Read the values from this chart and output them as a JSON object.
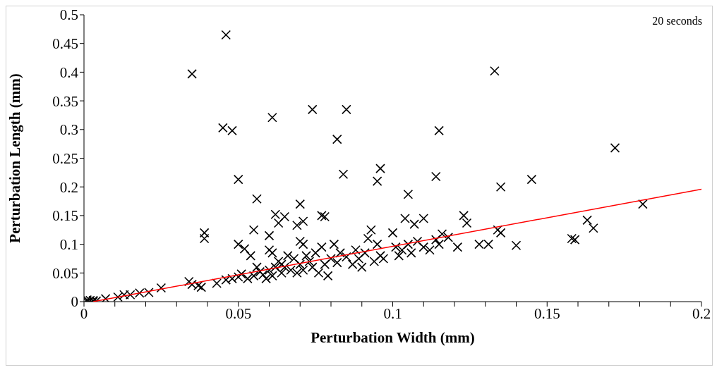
{
  "chart_data": {
    "type": "scatter",
    "xlabel": "Perturbation Width (mm)",
    "ylabel": "Perturbation Length (mm)",
    "annotations": [
      "20 seconds"
    ],
    "xlim": [
      0,
      0.2
    ],
    "ylim": [
      0,
      0.5
    ],
    "xticks": [
      0,
      {
        "value": 0.01,
        "label": null
      },
      {
        "value": 0.02,
        "label": null
      },
      {
        "value": 0.03,
        "label": null
      },
      {
        "value": 0.04,
        "label": null
      },
      0.05,
      {
        "value": 0.06,
        "label": null
      },
      {
        "value": 0.07,
        "label": null
      },
      {
        "value": 0.08,
        "label": null
      },
      {
        "value": 0.09,
        "label": null
      },
      0.1,
      {
        "value": 0.11,
        "label": null
      },
      {
        "value": 0.12,
        "label": null
      },
      {
        "value": 0.13,
        "label": null
      },
      {
        "value": 0.14,
        "label": null
      },
      0.15,
      {
        "value": 0.16,
        "label": null
      },
      {
        "value": 0.17,
        "label": null
      },
      {
        "value": 0.18,
        "label": null
      },
      {
        "value": 0.19,
        "label": null
      },
      0.2
    ],
    "yticks": [
      0,
      0.05,
      0.1,
      0.15,
      0.2,
      0.25,
      0.3,
      0.35,
      0.4,
      0.45,
      0.5
    ],
    "grid": false,
    "series": [
      {
        "color": "#000000",
        "marker": "cross",
        "x": [
          0.035,
          0.046,
          0.045,
          0.048,
          0.05,
          0.061,
          0.074,
          0.085,
          0.082,
          0.084,
          0.096,
          0.095,
          0.105,
          0.115,
          0.114,
          0.133,
          0.135,
          0.145,
          0.172,
          0.181,
          0.056,
          0.039,
          0.039,
          0.062,
          0.065,
          0.07,
          0.077,
          0.078,
          0.055,
          0.05,
          0.052,
          0.06,
          0.071,
          0.069,
          0.063,
          0.123,
          0.124,
          0.11,
          0.104,
          0.107,
          0.116,
          0.118,
          0.114,
          0.121,
          0.134,
          0.135,
          0.14,
          0.128,
          0.131,
          0.158,
          0.159,
          0.163,
          0.165,
          0.001,
          0.002,
          0.003,
          0.004,
          0.001,
          0.003,
          0.007,
          0.011,
          0.013,
          0.015,
          0.018,
          0.021,
          0.025,
          0.034,
          0.035,
          0.037,
          0.038,
          0.043,
          0.046,
          0.048,
          0.05,
          0.051,
          0.053,
          0.055,
          0.057,
          0.058,
          0.059,
          0.06,
          0.061,
          0.062,
          0.063,
          0.064,
          0.065,
          0.066,
          0.067,
          0.068,
          0.069,
          0.07,
          0.071,
          0.072,
          0.073,
          0.074,
          0.075,
          0.076,
          0.077,
          0.078,
          0.079,
          0.08,
          0.081,
          0.082,
          0.083,
          0.085,
          0.087,
          0.088,
          0.089,
          0.09,
          0.091,
          0.092,
          0.093,
          0.094,
          0.095,
          0.096,
          0.097,
          0.1,
          0.101,
          0.102,
          0.103,
          0.105,
          0.106,
          0.108,
          0.11,
          0.112,
          0.115,
          0.06,
          0.061,
          0.07,
          0.071,
          0.064,
          0.056,
          0.054
        ],
        "values": [
          0.397,
          0.465,
          0.303,
          0.298,
          0.213,
          0.321,
          0.335,
          0.335,
          0.283,
          0.222,
          0.232,
          0.21,
          0.187,
          0.298,
          0.218,
          0.402,
          0.2,
          0.213,
          0.268,
          0.17,
          0.179,
          0.12,
          0.11,
          0.152,
          0.148,
          0.17,
          0.15,
          0.148,
          0.125,
          0.1,
          0.092,
          0.115,
          0.14,
          0.133,
          0.137,
          0.15,
          0.137,
          0.145,
          0.145,
          0.135,
          0.118,
          0.112,
          0.108,
          0.095,
          0.125,
          0.12,
          0.098,
          0.1,
          0.1,
          0.11,
          0.108,
          0.142,
          0.128,
          0,
          0.002,
          0,
          0.001,
          0.003,
          0.002,
          0.005,
          0.008,
          0.012,
          0.012,
          0.015,
          0.016,
          0.024,
          0.035,
          0.03,
          0.028,
          0.025,
          0.032,
          0.038,
          0.04,
          0.043,
          0.048,
          0.04,
          0.045,
          0.052,
          0.047,
          0.04,
          0.055,
          0.045,
          0.06,
          0.07,
          0.05,
          0.06,
          0.08,
          0.055,
          0.075,
          0.05,
          0.065,
          0.055,
          0.08,
          0.07,
          0.06,
          0.085,
          0.05,
          0.095,
          0.065,
          0.045,
          0.075,
          0.1,
          0.068,
          0.085,
          0.078,
          0.065,
          0.09,
          0.075,
          0.06,
          0.085,
          0.11,
          0.125,
          0.07,
          0.1,
          0.08,
          0.075,
          0.12,
          0.095,
          0.08,
          0.09,
          0.1,
          0.085,
          0.105,
          0.095,
          0.09,
          0.1,
          0.09,
          0.085,
          0.105,
          0.1,
          0.065,
          0.06,
          0.08
        ]
      },
      {
        "type": "line",
        "color": "#ff0000",
        "marker": "none",
        "x": [
          0.003,
          0.2
        ],
        "values": [
          0,
          0.196
        ]
      }
    ]
  }
}
